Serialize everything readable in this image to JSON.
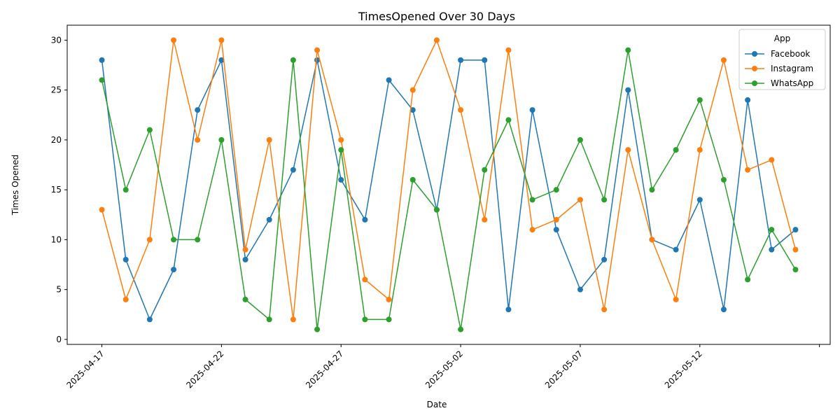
{
  "chart_data": {
    "type": "line",
    "title": "TimesOpened Over 30 Days",
    "xlabel": "Date",
    "ylabel": "Times Opened",
    "x": [
      "2025-04-17",
      "2025-04-18",
      "2025-04-19",
      "2025-04-20",
      "2025-04-21",
      "2025-04-22",
      "2025-04-23",
      "2025-04-24",
      "2025-04-25",
      "2025-04-26",
      "2025-04-27",
      "2025-04-28",
      "2025-04-29",
      "2025-04-30",
      "2025-05-01",
      "2025-05-02",
      "2025-05-03",
      "2025-05-04",
      "2025-05-05",
      "2025-05-06",
      "2025-05-07",
      "2025-05-08",
      "2025-05-09",
      "2025-05-10",
      "2025-05-11",
      "2025-05-12",
      "2025-05-13",
      "2025-05-14",
      "2025-05-15",
      "2025-05-16"
    ],
    "x_ticks": [
      "2025-04-17",
      "2025-04-22",
      "2025-04-27",
      "2025-05-02",
      "2025-05-07",
      "2025-05-12"
    ],
    "y_ticks": [
      0,
      5,
      10,
      15,
      20,
      25,
      30
    ],
    "ylim": [
      -0.5,
      31.5
    ],
    "grid": false,
    "legend": {
      "title": "App",
      "position": "top-right"
    },
    "series": [
      {
        "name": "Facebook",
        "color": "#1f77b4",
        "values": [
          28,
          8,
          2,
          7,
          23,
          28,
          8,
          12,
          17,
          28,
          16,
          12,
          26,
          23,
          13,
          28,
          28,
          3,
          23,
          11,
          5,
          8,
          25,
          10,
          9,
          14,
          3,
          24,
          9,
          11
        ]
      },
      {
        "name": "Instagram",
        "color": "#ff7f0e",
        "values": [
          13,
          4,
          10,
          30,
          20,
          30,
          9,
          20,
          2,
          29,
          20,
          6,
          4,
          25,
          30,
          23,
          12,
          29,
          11,
          12,
          14,
          3,
          19,
          10,
          4,
          19,
          28,
          17,
          18,
          9
        ]
      },
      {
        "name": "WhatsApp",
        "color": "#2ca02c",
        "values": [
          26,
          15,
          21,
          10,
          10,
          20,
          4,
          2,
          28,
          1,
          19,
          2,
          2,
          16,
          13,
          1,
          17,
          22,
          14,
          15,
          20,
          14,
          29,
          15,
          19,
          24,
          16,
          6,
          11,
          7
        ]
      }
    ]
  }
}
